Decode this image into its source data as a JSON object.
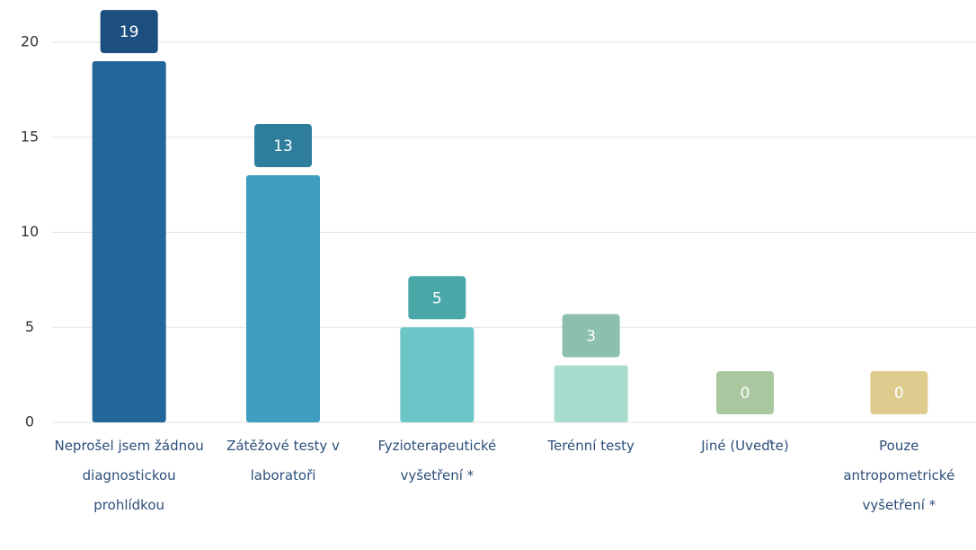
{
  "chart_data": {
    "type": "bar",
    "categories": [
      "Neprošel jsem žádnou diagnostickou prohlídkou",
      "Zátěžové testy v laboratoři",
      "Fyzioterapeutické vyšetření *",
      "Terénní testy",
      "Jiné (Uveďte)",
      "Pouze antropometrické vyšetření *"
    ],
    "values": [
      19,
      13,
      5,
      3,
      0,
      0
    ],
    "colors": [
      "#236699",
      "#3f9dbf",
      "#6cc5c6",
      "#a8dccf",
      "#c4dfb8",
      "#e9dca6"
    ],
    "label_colors": [
      "#1c4f7f",
      "#2f7d9c",
      "#4aa8a8",
      "#8cbfae",
      "#a9c8a0",
      "#ddcc8e"
    ],
    "ylim": [
      0,
      20
    ],
    "yticks": [
      0,
      5,
      10,
      15,
      20
    ],
    "grid": true
  }
}
